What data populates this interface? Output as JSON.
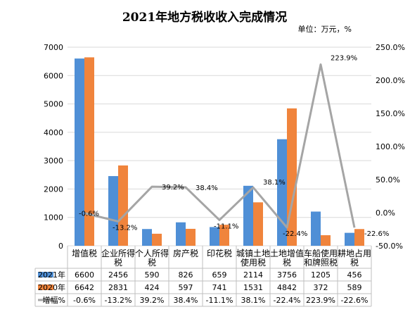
{
  "chart_data": {
    "type": "bar",
    "title": "2021年地方税收收入完成情况",
    "subtitle": "单位：万元，%",
    "categories": [
      "增值税",
      "企业所得税",
      "个人所得税",
      "房产税",
      "印花税",
      "城镇土地使用税",
      "土地增值税",
      "车船使用和牌照税",
      "耕地占用税"
    ],
    "category_lines": [
      [
        "增值税"
      ],
      [
        "企业所得",
        "税"
      ],
      [
        "个人所得",
        "税"
      ],
      [
        "房产税"
      ],
      [
        "印花税"
      ],
      [
        "城镇土地",
        "使用税"
      ],
      [
        "土地增值",
        "税"
      ],
      [
        "车船使用",
        "和牌照税"
      ],
      [
        "耕地占用",
        "税"
      ]
    ],
    "series": [
      {
        "name": "2021年",
        "type": "bar",
        "axis": "left",
        "color": "#4f8fd6",
        "values": [
          6600,
          2456,
          590,
          826,
          659,
          2114,
          3756,
          1205,
          456
        ]
      },
      {
        "name": "2020年",
        "type": "bar",
        "axis": "left",
        "color": "#f0843c",
        "values": [
          6642,
          2831,
          424,
          597,
          741,
          1531,
          4842,
          372,
          589
        ]
      },
      {
        "name": "增幅%",
        "type": "line",
        "axis": "right",
        "color": "#a5a5a5",
        "values": [
          -0.6,
          -13.2,
          39.2,
          38.4,
          -11.1,
          38.1,
          -22.4,
          223.9,
          -22.6
        ]
      }
    ],
    "table_values": {
      "2021年": [
        "6600",
        "2456",
        "590",
        "826",
        "659",
        "2114",
        "3756",
        "1205",
        "456"
      ],
      "2020年": [
        "6642",
        "2831",
        "424",
        "597",
        "741",
        "1531",
        "4842",
        "372",
        "589"
      ],
      "增幅%": [
        "-0.6%",
        "-13.2%",
        "39.2%",
        "38.4%",
        "-11.1%",
        "38.1%",
        "-22.4%",
        "223.9%",
        "-22.6%"
      ]
    },
    "line_labels": [
      "-0.6%",
      "-13.2%",
      "39.2%",
      "38.4%",
      "-11.1%",
      "38.1%",
      "-22.4%",
      "223.9%",
      "-22.6%"
    ],
    "ylim": [
      0,
      7000
    ],
    "y_ticks": [
      0,
      1000,
      2000,
      3000,
      4000,
      5000,
      6000,
      7000
    ],
    "y2lim": [
      -50,
      250
    ],
    "y2_ticks": [
      -50,
      0,
      50,
      100,
      150,
      200,
      250
    ],
    "y2_tick_labels": [
      "-50.0%",
      "0.0%",
      "50.0%",
      "100.0%",
      "150.0%",
      "200.0%",
      "250.0%"
    ],
    "grid": true,
    "legend": "data table below chart"
  }
}
